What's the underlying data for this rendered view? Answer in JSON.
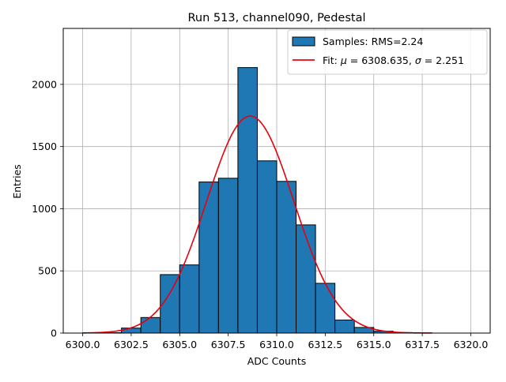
{
  "chart_data": {
    "type": "bar",
    "title": "Run 513, channel090, Pedestal",
    "xlabel": "ADC Counts",
    "ylabel": "Entries",
    "xlim": [
      6299.0,
      6321.0
    ],
    "ylim": [
      0,
      2450
    ],
    "xticks": [
      6300.0,
      6302.5,
      6305.0,
      6307.5,
      6310.0,
      6312.5,
      6315.0,
      6317.5,
      6320.0
    ],
    "xtick_labels": [
      "6300.0",
      "6302.5",
      "6305.0",
      "6307.5",
      "6310.0",
      "6312.5",
      "6315.0",
      "6317.5",
      "6320.0"
    ],
    "yticks": [
      0,
      500,
      1000,
      1500,
      2000
    ],
    "ytick_labels": [
      "0",
      "500",
      "1000",
      "1500",
      "2000"
    ],
    "grid": true,
    "legend_position": "top-right",
    "series": [
      {
        "name": "Samples: RMS=2.24",
        "kind": "histogram",
        "color": "#1f77b4",
        "edge_color": "#000000",
        "bin_edges": [
          6300.0,
          6301.0,
          6302.0,
          6303.0,
          6304.0,
          6305.0,
          6306.0,
          6307.0,
          6308.0,
          6309.0,
          6310.0,
          6311.0,
          6312.0,
          6313.0,
          6314.0,
          6315.0,
          6316.0,
          6317.0,
          6318.0
        ],
        "values": [
          1,
          3,
          40,
          125,
          470,
          548,
          1215,
          1245,
          2135,
          1385,
          1220,
          870,
          400,
          105,
          45,
          15,
          4,
          1
        ]
      },
      {
        "name": "Fit: μ = 6308.635, σ = 2.251",
        "name_parts": [
          "Fit: ",
          "μ",
          " = 6308.635, ",
          "σ",
          " = 2.251"
        ],
        "kind": "gaussian_fit",
        "color": "#e8000b",
        "mu": 6308.635,
        "sigma": 2.251,
        "amplitude": 1745,
        "x_range": [
          6300.0,
          6318.0
        ]
      }
    ]
  }
}
